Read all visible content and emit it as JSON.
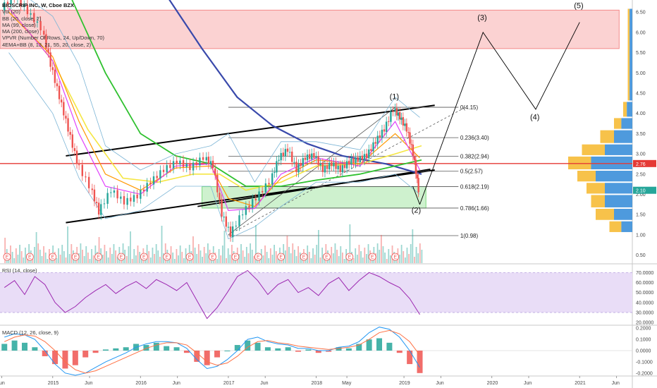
{
  "legend": {
    "symbol": "BIOSCRIP INC, W, Cboe BZX",
    "indicators": [
      "Vol (20)",
      "BB (20, close, 2)",
      "MA (99, close)",
      "MA (200, close)",
      "VPVR (Number Of Rows, 24, Up/Down, 70)",
      "4EMA+BB (8, 13, 21, 55, 20, close, 2)"
    ]
  },
  "rsi_label": "RSI (14, close)",
  "macd_label": "MACD (12, 26, close, 9)",
  "chart_data": {
    "type": "line",
    "title": "BIOSCRIP INC, W, Cboe BZX",
    "price_axis": {
      "ticks": [
        "0.50",
        "1.00",
        "1.50",
        "2.00",
        "2.50",
        "3.00",
        "3.50",
        "4.00",
        "4.50",
        "5.00",
        "5.50",
        "6.00",
        "6.50"
      ],
      "values": [
        0.5,
        1,
        1.5,
        2,
        2.5,
        3,
        3.5,
        4,
        4.5,
        5,
        5.5,
        6,
        6.5
      ],
      "ylim": [
        0.3,
        6.8
      ]
    },
    "time_axis": {
      "labels": [
        "Jun",
        "2015",
        "Jun",
        "2016",
        "Jun",
        "2017",
        "Jun",
        "2018",
        "May",
        "2019",
        "Jun",
        "2020",
        "Jun",
        "2021",
        "Jun"
      ],
      "positions": [
        2014.42,
        2015.0,
        2015.42,
        2016.0,
        2016.42,
        2017.0,
        2017.42,
        2018.0,
        2018.35,
        2019.0,
        2019.42,
        2020.0,
        2020.42,
        2021.0,
        2021.42
      ],
      "xlim": [
        2014.4,
        2021.6
      ]
    },
    "price_series": {
      "name": "",
      "x": [
        2014.45,
        2014.6,
        2014.75,
        2014.9,
        2015.0,
        2015.1,
        2015.2,
        2015.3,
        2015.45,
        2015.55,
        2015.7,
        2015.85,
        2016.0,
        2016.15,
        2016.3,
        2016.45,
        2016.6,
        2016.75,
        2016.85,
        2016.95,
        2017.05,
        2017.2,
        2017.35,
        2017.5,
        2017.6,
        2017.7,
        2017.8,
        2017.9,
        2018.0,
        2018.1,
        2018.2,
        2018.3,
        2018.4,
        2018.5,
        2018.6,
        2018.7,
        2018.8,
        2018.9,
        2018.97,
        2019.05,
        2019.12,
        2019.18
      ],
      "y": [
        6.6,
        6.9,
        6.5,
        6.1,
        5.2,
        4.4,
        3.6,
        2.8,
        2.2,
        1.55,
        2.1,
        1.8,
        1.95,
        2.3,
        2.6,
        2.8,
        2.65,
        2.9,
        2.7,
        1.5,
        1.0,
        1.55,
        1.9,
        2.3,
        2.9,
        3.1,
        2.6,
        2.9,
        2.95,
        2.6,
        2.75,
        2.6,
        2.8,
        2.85,
        2.95,
        3.3,
        3.6,
        4.1,
        3.9,
        3.6,
        3.0,
        2.1
      ]
    },
    "fibonacci": [
      {
        "label": "0(4.15)",
        "value": 4.15
      },
      {
        "label": "0.236(3.40)",
        "value": 3.4
      },
      {
        "label": "0.382(2.94)",
        "value": 2.94
      },
      {
        "label": "0.5(2.57)",
        "value": 2.57
      },
      {
        "label": "0.618(2.19)",
        "value": 2.19
      },
      {
        "label": "0.786(1.66)",
        "value": 1.66
      },
      {
        "label": "1(0.98)",
        "value": 0.98
      }
    ],
    "waves": [
      {
        "label": "(1)",
        "x": 2018.9,
        "y": 4.35
      },
      {
        "label": "(2)",
        "x": 2019.15,
        "y": 1.55
      },
      {
        "label": "(3)",
        "x": 2019.9,
        "y": 6.3
      },
      {
        "label": "(4)",
        "x": 2020.5,
        "y": 3.85
      },
      {
        "label": "(5)",
        "x": 2021.0,
        "y": 6.6
      }
    ],
    "projection_path": {
      "x": [
        2019.18,
        2019.9,
        2020.5,
        2021.0
      ],
      "y": [
        1.75,
        6.0,
        4.1,
        6.25
      ]
    },
    "zones": [
      {
        "name": "resistance",
        "y": [
          5.6,
          6.55
        ],
        "x": [
          2014.4,
          2021.45
        ],
        "color": "#f48a8a"
      },
      {
        "name": "support",
        "y": [
          1.66,
          2.19
        ],
        "x": [
          2016.7,
          2019.25
        ],
        "color": "#7ed97e"
      }
    ],
    "current_price": {
      "label": "2.76",
      "value": 2.76,
      "color": "#e53935"
    },
    "last_price": {
      "label": "2.10",
      "value": 2.1,
      "color": "#26a69a"
    },
    "rsi": {
      "ticks": [
        "20.0000",
        "30.0000",
        "40.0000",
        "50.0000",
        "60.0000",
        "70.0000"
      ],
      "values": [
        20,
        30,
        40,
        50,
        60,
        70
      ],
      "ylim": [
        18,
        78
      ],
      "band": [
        30,
        70
      ],
      "series": [
        55,
        62,
        48,
        66,
        58,
        40,
        30,
        36,
        45,
        52,
        58,
        49,
        56,
        61,
        54,
        63,
        58,
        52,
        60,
        42,
        24,
        35,
        50,
        66,
        72,
        62,
        48,
        58,
        63,
        50,
        55,
        47,
        59,
        65,
        52,
        62,
        70,
        66,
        60,
        55,
        44,
        28
      ]
    },
    "macd": {
      "ticks": [
        "-0.2000",
        "-0.1000",
        "0.0000",
        "0.1000",
        "0.2000"
      ],
      "values": [
        -0.2,
        -0.1,
        0.0,
        0.1,
        0.2
      ],
      "ylim": [
        -0.22,
        0.22
      ],
      "histogram": [
        0.06,
        0.09,
        0.07,
        0.03,
        -0.05,
        -0.12,
        -0.16,
        -0.13,
        -0.06,
        -0.02,
        0.01,
        0.02,
        0.03,
        0.06,
        0.05,
        0.07,
        0.04,
        0.03,
        -0.02,
        -0.1,
        -0.13,
        -0.06,
        0.0,
        0.05,
        0.09,
        0.07,
        0.03,
        0.02,
        0.03,
        -0.01,
        0.01,
        -0.02,
        -0.01,
        0.03,
        0.02,
        0.06,
        0.1,
        0.11,
        0.07,
        -0.02,
        -0.12,
        -0.2
      ],
      "macd_line": [
        0.12,
        0.15,
        0.14,
        0.1,
        0.0,
        -0.12,
        -0.2,
        -0.22,
        -0.2,
        -0.15,
        -0.1,
        -0.06,
        -0.02,
        0.03,
        0.06,
        0.08,
        0.08,
        0.07,
        0.02,
        -0.08,
        -0.16,
        -0.14,
        -0.08,
        0.0,
        0.1,
        0.12,
        0.08,
        0.06,
        0.05,
        0.02,
        0.02,
        0.0,
        0.0,
        0.03,
        0.04,
        0.08,
        0.16,
        0.21,
        0.19,
        0.12,
        0.0,
        -0.15
      ],
      "signal_line": [
        0.08,
        0.12,
        0.14,
        0.13,
        0.08,
        0.0,
        -0.1,
        -0.17,
        -0.2,
        -0.18,
        -0.14,
        -0.1,
        -0.06,
        -0.02,
        0.02,
        0.05,
        0.07,
        0.07,
        0.05,
        -0.02,
        -0.1,
        -0.13,
        -0.11,
        -0.05,
        0.03,
        0.08,
        0.09,
        0.07,
        0.06,
        0.04,
        0.03,
        0.02,
        0.01,
        0.02,
        0.03,
        0.05,
        0.1,
        0.16,
        0.18,
        0.15,
        0.08,
        -0.04
      ]
    },
    "colors": {
      "up": "#26a69a",
      "down": "#ef5350",
      "ma99": "#2fc12f",
      "ma200": "#3949ab",
      "bb": "#7cb5d6",
      "ema_yellow": "#f5e642",
      "ema_orange": "#ff9800",
      "ema_magenta": "#e040fb",
      "rsi_line": "#9c27b0",
      "rsi_band": "#e9ddf7",
      "macd_line": "#2196f3",
      "signal_line": "#ff7043"
    }
  }
}
